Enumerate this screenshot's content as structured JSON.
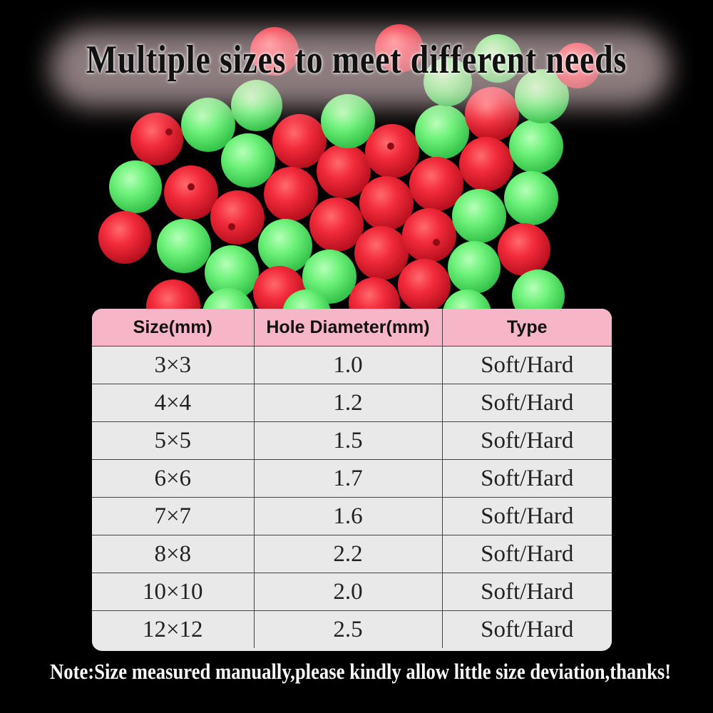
{
  "headline": "Multiple sizes to meet different needs",
  "colors": {
    "background": "#000000",
    "bead_red": "#ef2a3a",
    "bead_green": "#6ef27a",
    "table_header": "#f7b6c7",
    "table_cell": "#e9e9e9"
  },
  "table": {
    "headers": [
      "Size(mm)",
      "Hole Diameter(mm)",
      "Type"
    ],
    "rows": [
      [
        "3×3",
        "1.0",
        "Soft/Hard"
      ],
      [
        "4×4",
        "1.2",
        "Soft/Hard"
      ],
      [
        "5×5",
        "1.5",
        "Soft/Hard"
      ],
      [
        "6×6",
        "1.7",
        "Soft/Hard"
      ],
      [
        "7×7",
        "1.6",
        "Soft/Hard"
      ],
      [
        "8×8",
        "2.2",
        "Soft/Hard"
      ],
      [
        "10×10",
        "2.0",
        "Soft/Hard"
      ],
      [
        "12×12",
        "2.5",
        "Soft/Hard"
      ]
    ]
  },
  "note": "Note:Size measured manually,please kindly allow little size deviation,thanks!"
}
